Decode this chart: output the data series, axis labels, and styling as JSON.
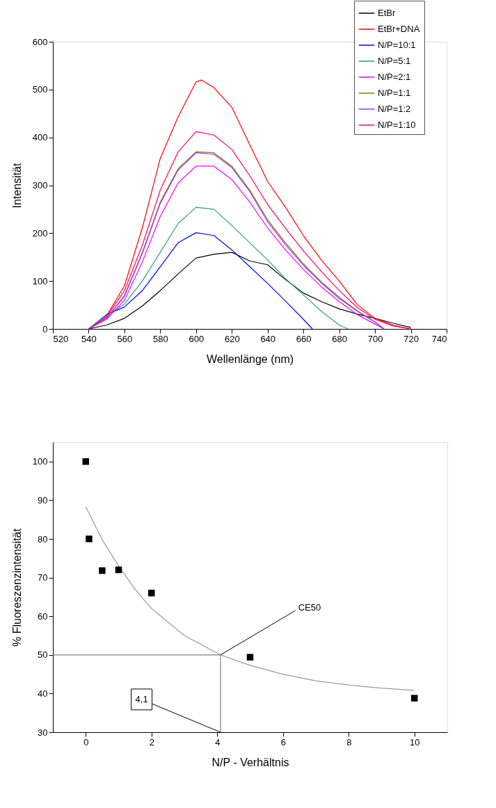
{
  "chart_data": [
    {
      "type": "line",
      "xlabel": "Wellenlänge (nm)",
      "ylabel": "Intensität",
      "xlim": [
        520,
        740
      ],
      "xticks": [
        520,
        540,
        560,
        580,
        600,
        620,
        640,
        660,
        680,
        700,
        720,
        740
      ],
      "ylim": [
        0,
        600
      ],
      "yticks": [
        0,
        100,
        200,
        300,
        400,
        500,
        600
      ],
      "grid": false,
      "legend": "top right",
      "marker": "none",
      "line_style": "solid",
      "series": [
        {
          "name": "EtBr",
          "color": "#000000",
          "x": [
            540,
            550,
            560,
            570,
            580,
            590,
            600,
            610,
            620,
            630,
            640,
            650,
            660,
            670,
            680,
            690,
            700,
            710,
            720
          ],
          "values": [
            0,
            8,
            22,
            48,
            80,
            115,
            148,
            156,
            160,
            142,
            134,
            103,
            75,
            57,
            42,
            31,
            22,
            12,
            3
          ]
        },
        {
          "name": "EtBr+DNA",
          "color": "#ff0000",
          "x": [
            540,
            550,
            560,
            570,
            580,
            590,
            600,
            603,
            610,
            620,
            630,
            640,
            650,
            660,
            670,
            680,
            690,
            700,
            710,
            720
          ],
          "values": [
            0,
            27,
            90,
            211,
            356,
            443,
            516,
            520,
            504,
            463,
            385,
            308,
            254,
            195,
            144,
            100,
            51,
            22,
            8,
            0
          ]
        },
        {
          "name": "N/P=10:1",
          "color": "#0000ff",
          "x": [
            540,
            550,
            560,
            570,
            580,
            590,
            600,
            610,
            620,
            630,
            640,
            650,
            660,
            665
          ],
          "values": [
            0,
            30,
            46,
            80,
            130,
            180,
            201,
            195,
            165,
            130,
            95,
            58,
            20,
            0
          ]
        },
        {
          "name": "N/P=5:1",
          "color": "#339999",
          "x": [
            540,
            550,
            560,
            570,
            580,
            590,
            600,
            610,
            620,
            630,
            640,
            650,
            660,
            670,
            680,
            685
          ],
          "values": [
            0,
            28,
            52,
            100,
            160,
            220,
            254,
            250,
            216,
            180,
            144,
            105,
            71,
            37,
            8,
            0
          ]
        },
        {
          "name": "N/P=2:1",
          "color": "#ff00ff",
          "x": [
            540,
            550,
            560,
            570,
            580,
            590,
            600,
            610,
            620,
            630,
            640,
            650,
            660,
            670,
            680,
            690,
            700,
            705
          ],
          "values": [
            0,
            20,
            60,
            140,
            235,
            305,
            340,
            340,
            312,
            265,
            211,
            165,
            124,
            88,
            57,
            30,
            10,
            0
          ]
        },
        {
          "name": "N/P=1:1",
          "color": "#808000",
          "x": [
            540,
            550,
            560,
            570,
            580,
            590,
            600,
            610,
            620,
            630,
            640,
            650,
            660,
            670,
            680,
            690,
            700,
            705
          ],
          "values": [
            0,
            22,
            70,
            160,
            265,
            335,
            370,
            368,
            340,
            290,
            228,
            180,
            136,
            98,
            66,
            38,
            15,
            0
          ]
        },
        {
          "name": "N/P=1:2",
          "color": "#9933ff",
          "x": [
            540,
            550,
            560,
            570,
            580,
            590,
            600,
            610,
            620,
            630,
            640,
            650,
            660,
            670,
            680,
            690,
            700,
            705
          ],
          "values": [
            0,
            22,
            68,
            158,
            262,
            332,
            368,
            365,
            337,
            287,
            224,
            176,
            133,
            96,
            64,
            37,
            14,
            0
          ]
        },
        {
          "name": "N/P=1:10",
          "color": "#ff0066",
          "x": [
            540,
            550,
            560,
            570,
            580,
            590,
            600,
            610,
            620,
            630,
            640,
            650,
            660,
            670,
            680,
            690,
            700,
            710,
            720
          ],
          "values": [
            0,
            25,
            80,
            175,
            290,
            370,
            412,
            405,
            375,
            320,
            260,
            210,
            163,
            120,
            80,
            45,
            20,
            6,
            0
          ]
        }
      ]
    },
    {
      "type": "scatter",
      "xlabel": "N/P - Verhältnis",
      "ylabel": "% Fluoreszenzintensität",
      "xlim": [
        -1,
        11
      ],
      "xticks": [
        0,
        2,
        4,
        6,
        8,
        10
      ],
      "ylim": [
        30,
        105
      ],
      "yticks": [
        30,
        40,
        50,
        60,
        70,
        80,
        90,
        100
      ],
      "grid": false,
      "legend": false,
      "annotations": [
        {
          "text": "CE50",
          "x": 4.1,
          "y": 50
        },
        {
          "text": "4,1",
          "x": 4.1,
          "y": 30
        }
      ],
      "series": [
        {
          "type": "line",
          "color": "#999999",
          "marker": "none",
          "x": [
            0,
            0.5,
            1,
            1.5,
            2,
            3,
            4.1,
            5,
            6,
            7,
            8,
            9,
            10
          ],
          "values": [
            88.3,
            79.8,
            73,
            67,
            62,
            55,
            50,
            47.3,
            45,
            43.3,
            42.2,
            41.4,
            40.8
          ]
        },
        {
          "type": "line",
          "color": "#808080",
          "marker": "none",
          "x": [
            -1,
            4.1,
            4.1
          ],
          "values": [
            50,
            50,
            30
          ]
        },
        {
          "type": "scatter",
          "color": "#000000",
          "marker": "square",
          "x": [
            0,
            0.1,
            0.5,
            1,
            2,
            5,
            10
          ],
          "values": [
            100,
            80,
            71.8,
            72,
            66,
            49.4,
            38.8
          ]
        }
      ]
    }
  ]
}
